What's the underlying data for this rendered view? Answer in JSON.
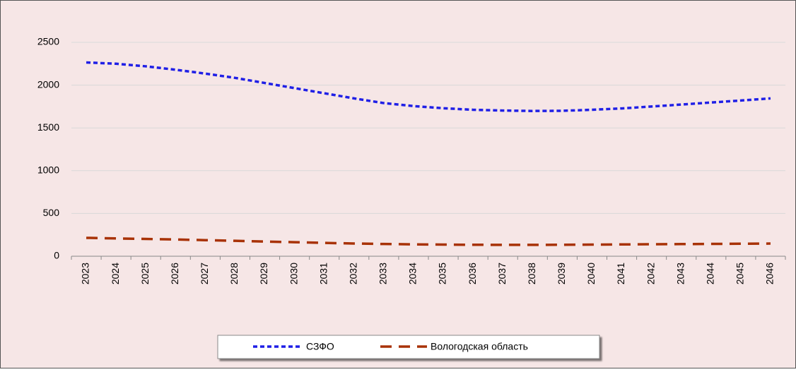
{
  "chart_data": {
    "type": "line",
    "categories": [
      "2023",
      "2024",
      "2025",
      "2026",
      "2027",
      "2028",
      "2029",
      "2030",
      "2031",
      "2032",
      "2033",
      "2034",
      "2035",
      "2036",
      "2037",
      "2038",
      "2039",
      "2040",
      "2041",
      "2042",
      "2043",
      "2044",
      "2045",
      "2046"
    ],
    "series": [
      {
        "name": "СЗФО",
        "color": "#1f1fe6",
        "dash": "6 4",
        "values": [
          2265,
          2250,
          2220,
          2180,
          2135,
          2085,
          2025,
          1965,
          1905,
          1845,
          1790,
          1755,
          1730,
          1712,
          1703,
          1698,
          1700,
          1712,
          1728,
          1750,
          1773,
          1797,
          1820,
          1845
        ]
      },
      {
        "name": "Вологодская область",
        "color": "#a83206",
        "dash": "16 10",
        "values": [
          215,
          208,
          202,
          196,
          188,
          180,
          172,
          164,
          156,
          149,
          143,
          139,
          136,
          134,
          133,
          133,
          134,
          136,
          138,
          140,
          142,
          144,
          146,
          148
        ]
      }
    ],
    "ylim": [
      0,
      2500
    ],
    "yticks": [
      0,
      500,
      1000,
      1500,
      2000,
      2500
    ],
    "grid": true,
    "legend": "bottom"
  }
}
